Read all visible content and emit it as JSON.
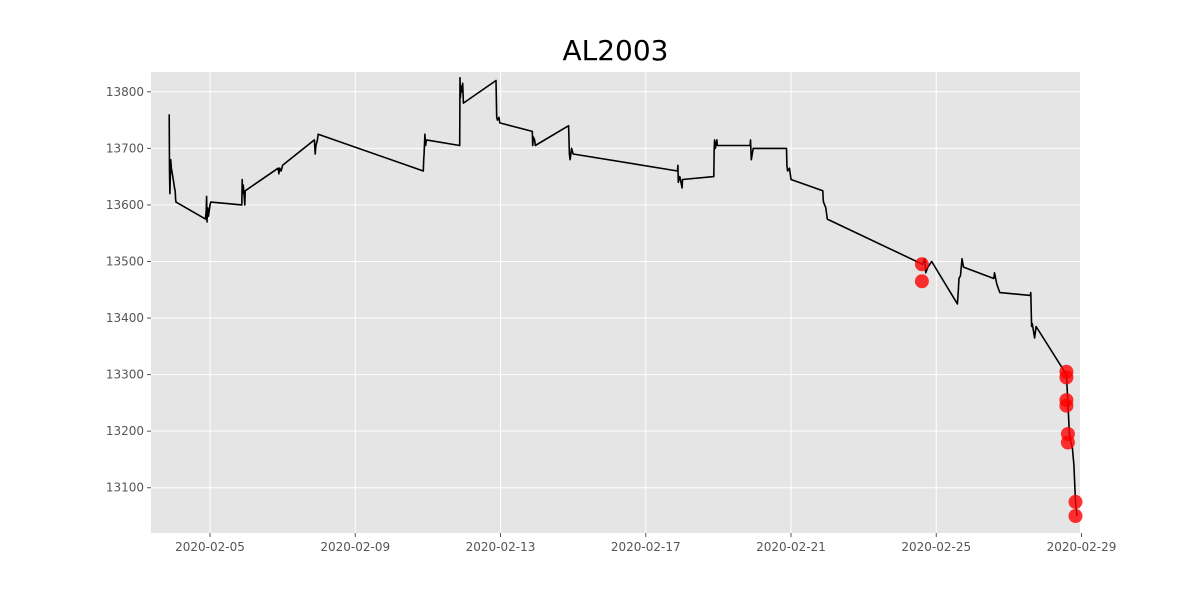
{
  "chart_data": {
    "type": "line",
    "title": "AL2003",
    "xlabel": "",
    "ylabel": "",
    "x_tick_labels": [
      "2020-02-05",
      "2020-02-09",
      "2020-02-13",
      "2020-02-17",
      "2020-02-21",
      "2020-02-25",
      "2020-02-29"
    ],
    "y_ticks": [
      13100,
      13200,
      13300,
      13400,
      13500,
      13600,
      13700,
      13800
    ],
    "xlim": [
      "2020-02-03T09:00",
      "2020-02-28T23:00"
    ],
    "ylim": [
      13020,
      13835
    ],
    "grid": true,
    "style": "ggplot",
    "background_color": "#e5e5e5",
    "line_color": "#000000",
    "marker_color": "#ff0000",
    "series": [
      {
        "line": [
          [
            "2020-02-03T21:00",
            13760
          ],
          [
            "2020-02-03T21:15",
            13660
          ],
          [
            "2020-02-03T21:30",
            13620
          ],
          [
            "2020-02-03T22:00",
            13680
          ],
          [
            "2020-02-03T22:30",
            13665
          ],
          [
            "2020-02-04T00:00",
            13640
          ],
          [
            "2020-02-04T00:30",
            13630
          ],
          [
            "2020-02-04T01:00",
            13625
          ],
          [
            "2020-02-04T01:15",
            13610
          ],
          [
            "2020-02-04T01:30",
            13605
          ],
          [
            "2020-02-04T21:00",
            13575
          ],
          [
            "2020-02-04T21:30",
            13590
          ],
          [
            "2020-02-04T21:45",
            13615
          ],
          [
            "2020-02-04T22:00",
            13570
          ],
          [
            "2020-02-04T22:30",
            13595
          ],
          [
            "2020-02-04T23:00",
            13580
          ],
          [
            "2020-02-05T00:00",
            13600
          ],
          [
            "2020-02-05T00:30",
            13605
          ],
          [
            "2020-02-05T21:00",
            13600
          ],
          [
            "2020-02-05T21:15",
            13645
          ],
          [
            "2020-02-05T21:30",
            13620
          ],
          [
            "2020-02-05T22:00",
            13635
          ],
          [
            "2020-02-05T23:00",
            13600
          ],
          [
            "2020-02-05T23:15",
            13625
          ],
          [
            "2020-02-06T21:00",
            13665
          ],
          [
            "2020-02-06T21:30",
            13655
          ],
          [
            "2020-02-06T22:00",
            13665
          ],
          [
            "2020-02-06T23:00",
            13660
          ],
          [
            "2020-02-07T00:00",
            13670
          ],
          [
            "2020-02-07T21:00",
            13715
          ],
          [
            "2020-02-07T21:30",
            13690
          ],
          [
            "2020-02-07T22:00",
            13705
          ],
          [
            "2020-02-07T23:00",
            13715
          ],
          [
            "2020-02-07T23:30",
            13725
          ],
          [
            "2020-02-10T21:00",
            13660
          ],
          [
            "2020-02-10T21:15",
            13680
          ],
          [
            "2020-02-10T21:30",
            13690
          ],
          [
            "2020-02-10T22:00",
            13725
          ],
          [
            "2020-02-10T22:30",
            13705
          ],
          [
            "2020-02-10T23:00",
            13715
          ],
          [
            "2020-02-11T21:00",
            13705
          ],
          [
            "2020-02-11T21:15",
            13825
          ],
          [
            "2020-02-11T21:30",
            13790
          ],
          [
            "2020-02-11T22:00",
            13810
          ],
          [
            "2020-02-11T22:30",
            13800
          ],
          [
            "2020-02-11T23:00",
            13815
          ],
          [
            "2020-02-11T23:30",
            13780
          ],
          [
            "2020-02-12T21:00",
            13820
          ],
          [
            "2020-02-12T21:30",
            13755
          ],
          [
            "2020-02-12T22:00",
            13750
          ],
          [
            "2020-02-12T23:00",
            13755
          ],
          [
            "2020-02-12T23:30",
            13745
          ],
          [
            "2020-02-13T21:00",
            13730
          ],
          [
            "2020-02-13T21:15",
            13705
          ],
          [
            "2020-02-13T21:45",
            13720
          ],
          [
            "2020-02-13T22:30",
            13715
          ],
          [
            "2020-02-13T23:00",
            13705
          ],
          [
            "2020-02-14T21:00",
            13740
          ],
          [
            "2020-02-14T21:30",
            13690
          ],
          [
            "2020-02-14T22:00",
            13680
          ],
          [
            "2020-02-14T23:00",
            13700
          ],
          [
            "2020-02-15T00:00",
            13690
          ],
          [
            "2020-02-17T21:00",
            13660
          ],
          [
            "2020-02-17T21:15",
            13670
          ],
          [
            "2020-02-17T21:30",
            13640
          ],
          [
            "2020-02-17T22:30",
            13650
          ],
          [
            "2020-02-18T00:00",
            13630
          ],
          [
            "2020-02-18T00:15",
            13645
          ],
          [
            "2020-02-18T21:00",
            13650
          ],
          [
            "2020-02-18T21:15",
            13700
          ],
          [
            "2020-02-18T21:30",
            13715
          ],
          [
            "2020-02-18T22:00",
            13700
          ],
          [
            "2020-02-18T23:00",
            13715
          ],
          [
            "2020-02-18T23:15",
            13705
          ],
          [
            "2020-02-19T21:00",
            13705
          ],
          [
            "2020-02-19T21:15",
            13715
          ],
          [
            "2020-02-19T21:45",
            13680
          ],
          [
            "2020-02-19T23:00",
            13700
          ],
          [
            "2020-02-20T21:00",
            13700
          ],
          [
            "2020-02-20T21:15",
            13670
          ],
          [
            "2020-02-20T21:45",
            13660
          ],
          [
            "2020-02-20T23:00",
            13665
          ],
          [
            "2020-02-21T00:00",
            13645
          ],
          [
            "2020-02-21T21:00",
            13625
          ],
          [
            "2020-02-21T21:15",
            13610
          ],
          [
            "2020-02-21T21:30",
            13605
          ],
          [
            "2020-02-21T23:00",
            13595
          ],
          [
            "2020-02-22T00:00",
            13575
          ],
          [
            "2020-02-24T15:00",
            13495
          ],
          [
            "2020-02-24T16:30",
            13505
          ],
          [
            "2020-02-24T17:00",
            13480
          ],
          [
            "2020-02-24T18:30",
            13490
          ],
          [
            "2020-02-24T21:00",
            13500
          ],
          [
            "2020-02-25T14:00",
            13425
          ],
          [
            "2020-02-25T14:30",
            13445
          ],
          [
            "2020-02-25T15:00",
            13470
          ],
          [
            "2020-02-25T16:00",
            13475
          ],
          [
            "2020-02-25T17:00",
            13505
          ],
          [
            "2020-02-25T18:00",
            13490
          ],
          [
            "2020-02-26T14:00",
            13470
          ],
          [
            "2020-02-26T14:30",
            13480
          ],
          [
            "2020-02-26T16:00",
            13460
          ],
          [
            "2020-02-26T18:00",
            13445
          ],
          [
            "2020-02-27T14:00",
            13440
          ],
          [
            "2020-02-27T14:30",
            13445
          ],
          [
            "2020-02-27T15:00",
            13385
          ],
          [
            "2020-02-27T15:30",
            13390
          ],
          [
            "2020-02-27T17:00",
            13365
          ],
          [
            "2020-02-27T18:00",
            13385
          ],
          [
            "2020-02-28T14:00",
            13300
          ],
          [
            "2020-02-28T15:00",
            13250
          ],
          [
            "2020-02-28T16:00",
            13195
          ],
          [
            "2020-02-28T17:00",
            13180
          ],
          [
            "2020-02-28T18:00",
            13170
          ],
          [
            "2020-02-28T19:00",
            13140
          ],
          [
            "2020-02-28T20:00",
            13075
          ],
          [
            "2020-02-28T21:00",
            13050
          ]
        ]
      },
      {
        "markers": [
          [
            "2020-02-24T14:30",
            13495
          ],
          [
            "2020-02-24T14:30",
            13465
          ],
          [
            "2020-02-28T14:00",
            13305
          ],
          [
            "2020-02-28T14:00",
            13295
          ],
          [
            "2020-02-28T14:00",
            13255
          ],
          [
            "2020-02-28T14:00",
            13245
          ],
          [
            "2020-02-28T15:00",
            13195
          ],
          [
            "2020-02-28T15:00",
            13180
          ],
          [
            "2020-02-28T20:00",
            13075
          ],
          [
            "2020-02-28T20:00",
            13050
          ]
        ]
      }
    ]
  }
}
